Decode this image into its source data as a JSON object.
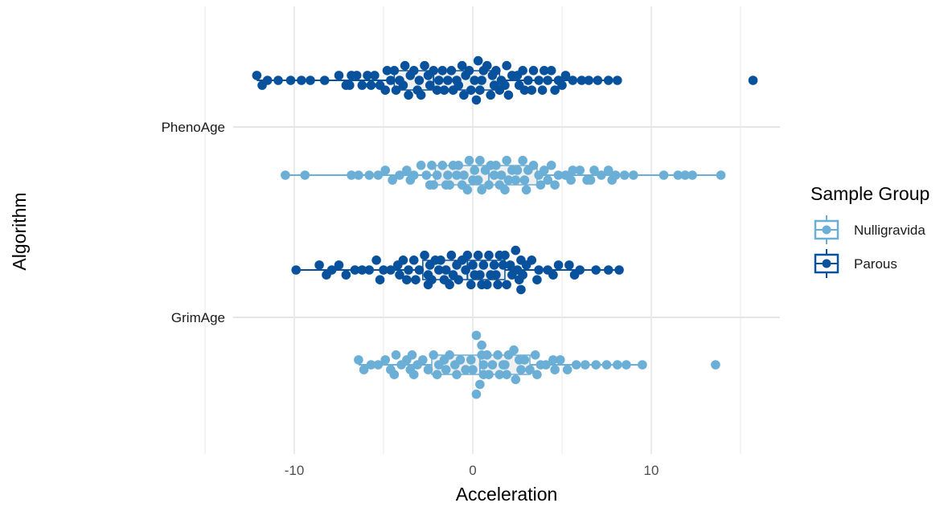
{
  "chart_data": {
    "type": "scatter",
    "subtype": "beeswarm with horizontal boxplots",
    "title": "",
    "xlabel": "Acceleration",
    "ylabel": "Algorithm",
    "xlim": [
      -13.5,
      16.5
    ],
    "x_ticks": [
      -10,
      0,
      10
    ],
    "x_tick_labels": [
      "-10",
      "0",
      "10"
    ],
    "categories": [
      "PhenoAge",
      "GrimAge"
    ],
    "grid": true,
    "legend": {
      "title": "Sample Group",
      "position": "right",
      "entries": [
        {
          "name": "Nulligravida",
          "color": "#6baed6"
        },
        {
          "name": "Parous",
          "color": "#08519c"
        }
      ]
    },
    "series": [
      {
        "name": "Parous",
        "category": "PhenoAge",
        "color": "#08519c",
        "box": {
          "q1": -4.4,
          "median": -2.2,
          "q3": 1.5,
          "whisker_low": -12.1,
          "whisker_high": 8.2
        },
        "values": [
          -12.1,
          -11.8,
          -11.5,
          -10.9,
          -10.2,
          -9.6,
          -9.1,
          -8.3,
          -7.5,
          -7.1,
          -6.8,
          -6.5,
          -6.2,
          -5.9,
          -5.5,
          -5.2,
          -4.8,
          -4.6,
          -4.4,
          -4.1,
          -3.8,
          -3.5,
          -3.3,
          -3.0,
          -2.7,
          -2.5,
          -2.2,
          -1.9,
          -1.7,
          -1.4,
          -1.2,
          -0.9,
          -0.6,
          -0.4,
          -0.2,
          0.1,
          0.3,
          0.6,
          0.8,
          1.1,
          1.3,
          1.6,
          1.9,
          2.2,
          2.5,
          2.8,
          3.1,
          3.4,
          3.7,
          4.0,
          4.4,
          4.8,
          5.2,
          5.6,
          6.1,
          6.5,
          7.0,
          7.6,
          8.1,
          -6.9,
          -5.7,
          -4.9,
          -3.9,
          -3.1,
          -2.4,
          -1.6,
          -0.8,
          -0.1,
          0.5,
          1.2,
          1.8,
          2.6,
          3.3,
          4.2,
          5.0,
          -4.3,
          -2.9,
          -1.1,
          0.4,
          1.5,
          2.9,
          4.6,
          -3.6,
          -0.5,
          2.0,
          3.9,
          0.2,
          -2.0,
          1.0,
          15.7
        ]
      },
      {
        "name": "Nulligravida",
        "category": "PhenoAge",
        "color": "#6baed6",
        "box": {
          "q1": -2.1,
          "median": 0.9,
          "q3": 3.6,
          "whisker_low": -10.5,
          "whisker_high": 13.9
        },
        "values": [
          -10.5,
          -9.4,
          -6.8,
          -6.4,
          -5.8,
          -5.3,
          -4.9,
          -4.5,
          -4.1,
          -3.7,
          -3.3,
          -2.9,
          -2.6,
          -2.3,
          -2.0,
          -1.7,
          -1.4,
          -1.1,
          -0.8,
          -0.5,
          -0.2,
          0.1,
          0.4,
          0.7,
          1.0,
          1.3,
          1.6,
          1.9,
          2.2,
          2.5,
          2.8,
          3.1,
          3.4,
          3.7,
          4.0,
          4.4,
          4.8,
          5.2,
          5.6,
          6.0,
          6.4,
          6.8,
          7.2,
          7.6,
          8.0,
          8.5,
          9.0,
          10.7,
          11.5,
          12.3,
          13.9,
          -3.5,
          -2.4,
          -1.5,
          -0.6,
          0.3,
          1.2,
          2.0,
          2.9,
          3.8,
          4.6,
          5.5,
          6.6,
          7.8,
          -2.2,
          -0.9,
          0.5,
          1.8,
          3.0,
          4.2,
          -1.3,
          0.9,
          2.4,
          0.0,
          1.5,
          -0.3,
          11.9
        ]
      },
      {
        "name": "Parous",
        "category": "GrimAge",
        "color": "#08519c",
        "box": {
          "q1": -2.8,
          "median": -0.3,
          "q3": 1.8,
          "whisker_low": -9.9,
          "whisker_high": 8.2
        },
        "values": [
          -9.9,
          -8.6,
          -8.2,
          -7.9,
          -7.5,
          -7.1,
          -6.6,
          -6.2,
          -5.8,
          -5.4,
          -5.0,
          -4.6,
          -4.2,
          -3.9,
          -3.6,
          -3.3,
          -3.0,
          -2.7,
          -2.4,
          -2.1,
          -1.8,
          -1.5,
          -1.2,
          -0.9,
          -0.6,
          -0.3,
          0.0,
          0.3,
          0.6,
          0.9,
          1.2,
          1.5,
          1.8,
          2.1,
          2.4,
          2.7,
          3.0,
          3.3,
          3.7,
          4.2,
          4.8,
          5.4,
          6.0,
          6.9,
          7.6,
          8.2,
          -5.2,
          -4.1,
          -3.2,
          -2.5,
          -1.9,
          -1.1,
          -0.4,
          0.4,
          1.0,
          1.7,
          2.5,
          3.6,
          4.5,
          5.7,
          -3.7,
          -2.3,
          -1.3,
          0.1,
          1.3,
          2.2,
          2.8,
          -2.5,
          -0.8,
          0.8,
          1.9,
          -1.6,
          0.5,
          2.6,
          -0.1,
          1.4,
          2.7
        ]
      },
      {
        "name": "Nulligravida",
        "category": "GrimAge",
        "color": "#6baed6",
        "box": {
          "q1": -2.3,
          "median": 0.4,
          "q3": 3.2,
          "whisker_low": -6.4,
          "whisker_high": 9.5
        },
        "values": [
          -6.4,
          -6.1,
          -5.7,
          -5.3,
          -4.9,
          -4.6,
          -4.3,
          -4.0,
          -3.7,
          -3.4,
          -3.1,
          -2.8,
          -2.5,
          -2.2,
          -1.9,
          -1.6,
          -1.3,
          -1.0,
          -0.7,
          -0.4,
          -0.1,
          0.2,
          0.5,
          0.8,
          1.1,
          1.4,
          1.7,
          2.0,
          2.3,
          2.6,
          2.9,
          3.2,
          3.5,
          3.8,
          4.1,
          4.5,
          4.9,
          5.3,
          5.8,
          6.3,
          6.9,
          7.5,
          8.1,
          8.6,
          9.5,
          13.6,
          -3.3,
          -2.0,
          -0.9,
          0.0,
          0.9,
          1.8,
          2.7,
          3.6,
          4.6,
          -4.4,
          -1.5,
          0.5,
          1.5,
          2.4,
          -3.5,
          0.6,
          0.6,
          0.4,
          1.9,
          0.2
        ]
      }
    ]
  }
}
